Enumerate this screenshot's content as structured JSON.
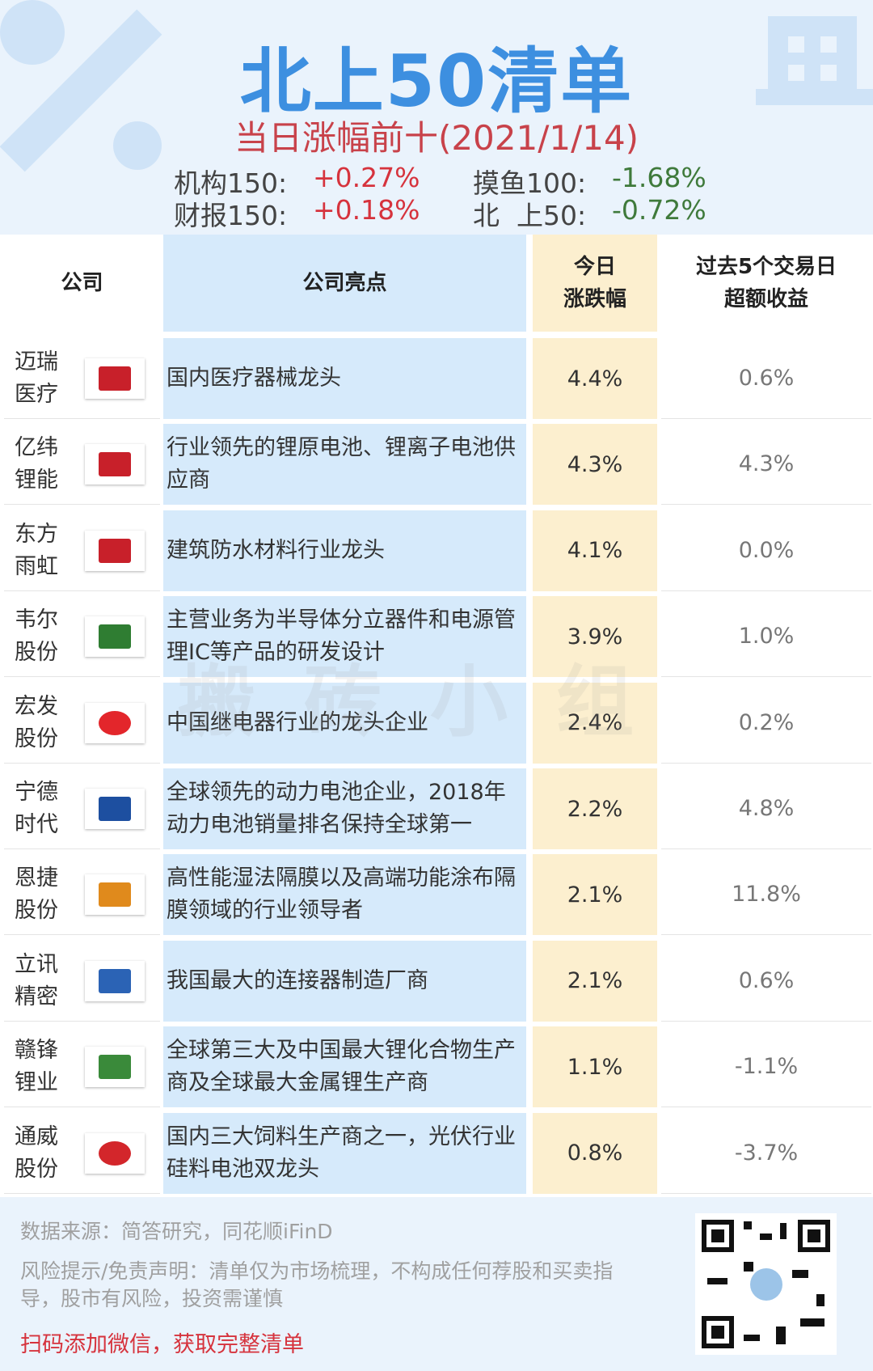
{
  "header": {
    "title": "北上50清单",
    "subtitle": "当日涨幅前十(2021/1/14)",
    "indices": [
      {
        "label": "机构150:",
        "value": "+0.27%"
      },
      {
        "label": "摸鱼100:",
        "value": "-1.68%"
      },
      {
        "label": "财报150:",
        "value": "+0.18%"
      },
      {
        "label": "北  上50:",
        "value": "-0.72%"
      }
    ]
  },
  "table": {
    "columns": [
      "公司",
      "公司亮点",
      "今日\n涨跌幅",
      "过去5个交易日\n超额收益"
    ],
    "rows": [
      [
        "迈瑞\n医疗",
        "国内医疗器械龙头",
        "4.4%",
        "0.6%"
      ],
      [
        "亿纬\n锂能",
        "行业领先的锂原电池、锂离子电池供应商",
        "4.3%",
        "4.3%"
      ],
      [
        "东方\n雨虹",
        "建筑防水材料行业龙头",
        "4.1%",
        "0.0%"
      ],
      [
        "韦尔\n股份",
        "主营业务为半导体分立器件和电源管理IC等产品的研发设计",
        "3.9%",
        "1.0%"
      ],
      [
        "宏发\n股份",
        "中国继电器行业的龙头企业",
        "2.4%",
        "0.2%"
      ],
      [
        "宁德\n时代",
        "全球领先的动力电池企业，2018年动力电池销量排名保持全球第一",
        "2.2%",
        "4.8%"
      ],
      [
        "恩捷\n股份",
        "高性能湿法隔膜以及高端功能涂布隔膜领域的行业领导者",
        "2.1%",
        "11.8%"
      ],
      [
        "立讯\n精密",
        "我国最大的连接器制造厂商",
        "2.1%",
        "0.6%"
      ],
      [
        "赣锋\n锂业",
        "全球第三大及中国最大锂化合物生产商及全球最大金属锂生产商",
        "1.1%",
        "-1.1%"
      ],
      [
        "通威\n股份",
        "国内三大饲料生产商之一，光伏行业硅料电池双龙头",
        "0.8%",
        "-3.7%"
      ]
    ]
  },
  "watermark": "搬砖小组",
  "footer": {
    "source": "数据来源：简答研究，同花顺iFinD",
    "disclaimer": "风险提示/免责声明：清单仅为市场梳理，不构成任何荐股和买卖指导，股市有风险，投资需谨慎",
    "cta": "扫码添加微信，获取完整清单"
  }
}
